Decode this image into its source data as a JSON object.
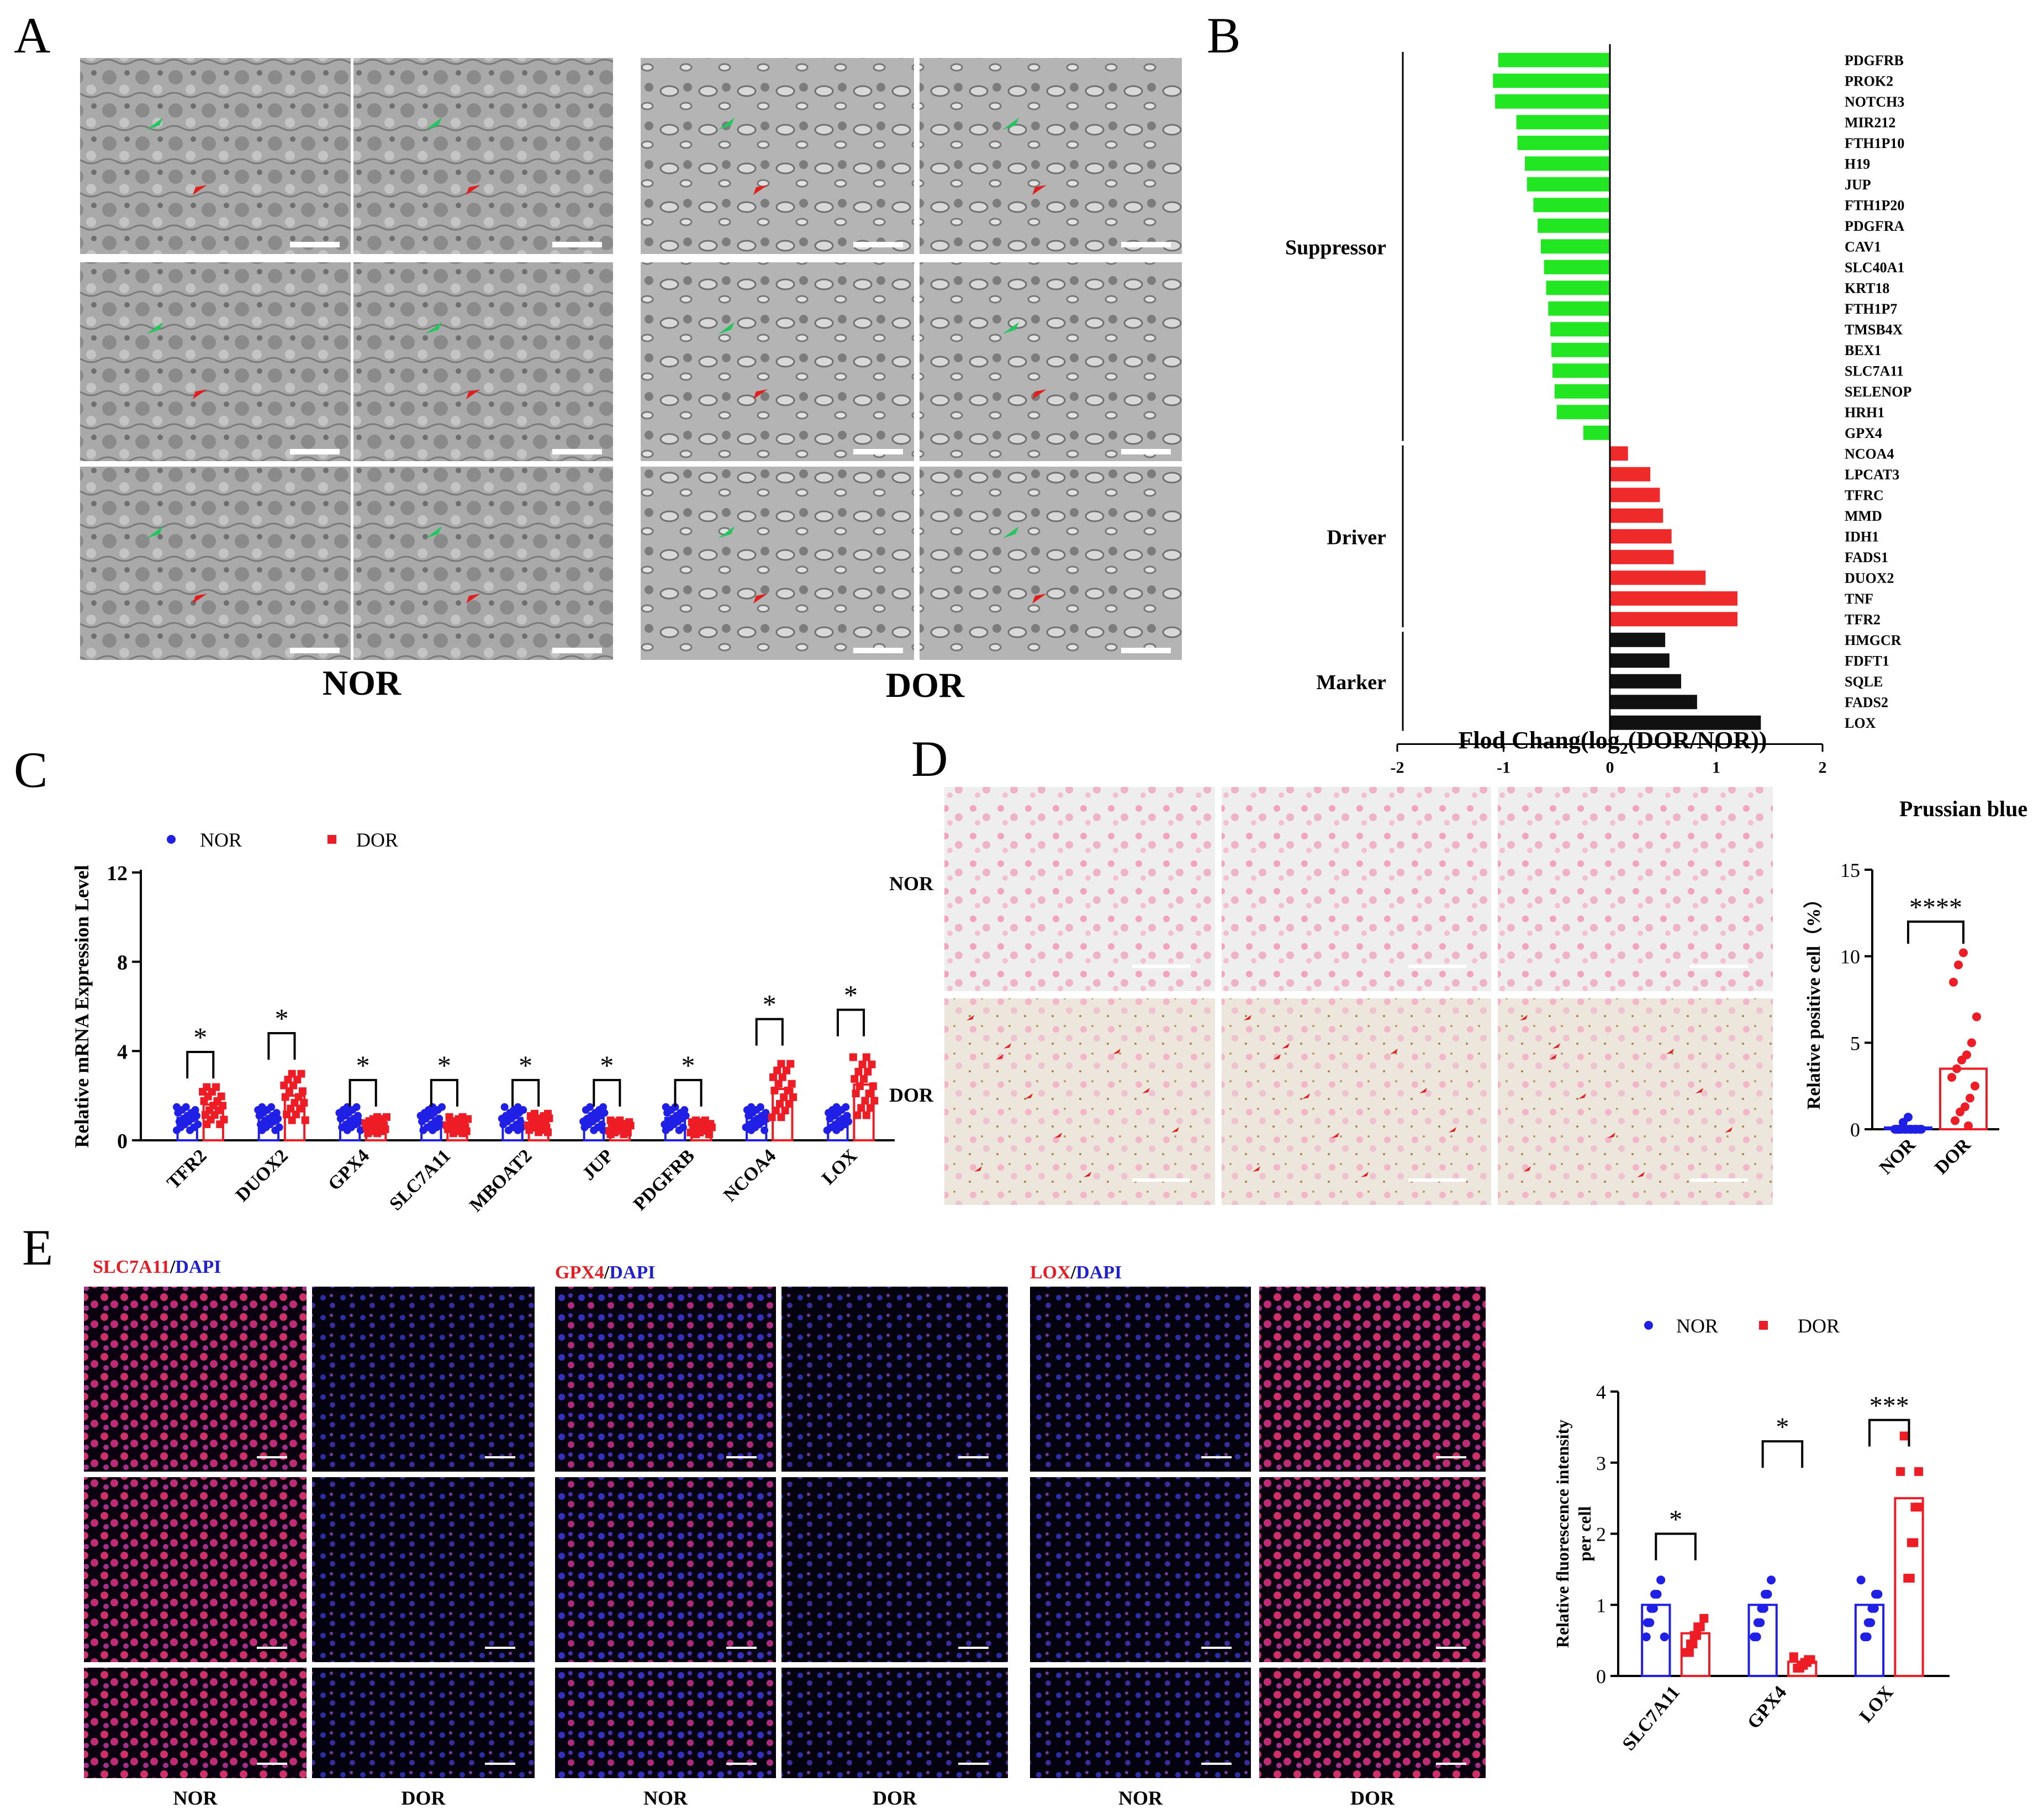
{
  "panel_labels": {
    "a": "A",
    "b": "B",
    "c": "C",
    "d": "D",
    "e": "E"
  },
  "panel_a": {
    "group_left": "NOR",
    "group_right": "DOR"
  },
  "panel_d": {
    "row_labels": [
      "NOR",
      "DOR"
    ]
  },
  "panel_e": {
    "titles": [
      {
        "marker": "SLC7A11",
        "sep": "/",
        "dapi": "DAPI"
      },
      {
        "marker": "GPX4",
        "sep": "/",
        "dapi": "DAPI"
      },
      {
        "marker": "LOX",
        "sep": "/",
        "dapi": "DAPI"
      }
    ],
    "bottom_labels": [
      "NOR",
      "DOR",
      "NOR",
      "DOR",
      "NOR",
      "DOR"
    ]
  },
  "colors": {
    "nor": "#1f1fe6",
    "dor": "#ee1c24",
    "suppressor": "#22e622",
    "driver": "#ee2a2a",
    "marker": "#111111"
  },
  "chart_data": [
    {
      "id": "B",
      "type": "bar",
      "orientation": "horizontal",
      "xlabel": "Flod Chang(log2(DOR/NOR))",
      "xlim": [
        -2,
        2
      ],
      "xticks": [
        "-2",
        "-1",
        "0",
        "1",
        "2"
      ],
      "categories": [
        "PDGFRB",
        "PROK2",
        "NOTCH3",
        "MIR212",
        "FTH1P10",
        "H19",
        "JUP",
        "FTH1P20",
        "PDGFRA",
        "CAV1",
        "SLC40A1",
        "KRT18",
        "FTH1P7",
        "TMSB4X",
        "BEX1",
        "SLC7A11",
        "SELENOP",
        "HRH1",
        "GPX4",
        "NCOA4",
        "LPCAT3",
        "TFRC",
        "MMD",
        "IDH1",
        "FADS1",
        "DUOX2",
        "TNF",
        "TFR2",
        "HMGCR",
        "FDFT1",
        "SQLE",
        "FADS2",
        "LOX"
      ],
      "values": [
        -1.05,
        -1.1,
        -1.08,
        -0.88,
        -0.87,
        -0.8,
        -0.78,
        -0.72,
        -0.68,
        -0.65,
        -0.62,
        -0.6,
        -0.58,
        -0.56,
        -0.55,
        -0.54,
        -0.52,
        -0.5,
        -0.25,
        0.17,
        0.38,
        0.47,
        0.5,
        0.58,
        0.6,
        0.9,
        1.2,
        1.2,
        0.52,
        0.56,
        0.67,
        0.82,
        1.42
      ],
      "groups": [
        {
          "name": "Suppressor",
          "count": 19
        },
        {
          "name": "Driver",
          "count": 9
        },
        {
          "name": "Marker",
          "count": 5
        }
      ]
    },
    {
      "id": "C",
      "type": "bar",
      "ylabel": "Relative mRNA Expression Level",
      "ylim": [
        0,
        12
      ],
      "yticks": [
        "0",
        "4",
        "8",
        "12"
      ],
      "categories": [
        "TFR2",
        "DUOX2",
        "GPX4",
        "SLC7A11",
        "MBOAT2",
        "JUP",
        "PDGFRB",
        "NCOA4",
        "LOX"
      ],
      "series": [
        {
          "name": "NOR",
          "values": [
            1.0,
            1.0,
            1.0,
            1.0,
            1.0,
            1.0,
            1.0,
            1.0,
            1.0
          ]
        },
        {
          "name": "DOR",
          "values": [
            1.6,
            2.0,
            0.7,
            0.7,
            0.8,
            0.6,
            0.6,
            2.3,
            2.5
          ]
        }
      ],
      "significance": [
        "*",
        "*",
        "*",
        "*",
        "*",
        "*",
        "*",
        "*",
        "*"
      ]
    },
    {
      "id": "D",
      "type": "bar",
      "title": "Prussian blue",
      "ylabel": "Relative positive cell（%）",
      "ylim": [
        0,
        15
      ],
      "yticks": [
        "0",
        "5",
        "10",
        "15"
      ],
      "categories": [
        "NOR",
        "DOR"
      ],
      "values": [
        0.1,
        3.5
      ],
      "points": [
        [
          0,
          0,
          0,
          0,
          0,
          0,
          0,
          0,
          0,
          0,
          0,
          0,
          0,
          0.4,
          0.7
        ],
        [
          0.5,
          1,
          1.3,
          1.8,
          2.5,
          3,
          3.5,
          4,
          4.3,
          5,
          6.5,
          8.5,
          9.5,
          10.2,
          0.2
        ]
      ],
      "significance": "****"
    },
    {
      "id": "E",
      "type": "bar",
      "ylabel": "Relative fluorescence intensity per cell",
      "ylim": [
        0,
        4
      ],
      "yticks": [
        "0",
        "1",
        "2",
        "3",
        "4"
      ],
      "categories": [
        "SLC7A11",
        "GPX4",
        "LOX"
      ],
      "series": [
        {
          "name": "NOR",
          "values": [
            1.0,
            1.0,
            1.0
          ]
        },
        {
          "name": "DOR",
          "values": [
            0.6,
            0.2,
            2.5
          ]
        }
      ],
      "significance": [
        "*",
        "*",
        "***"
      ]
    }
  ]
}
